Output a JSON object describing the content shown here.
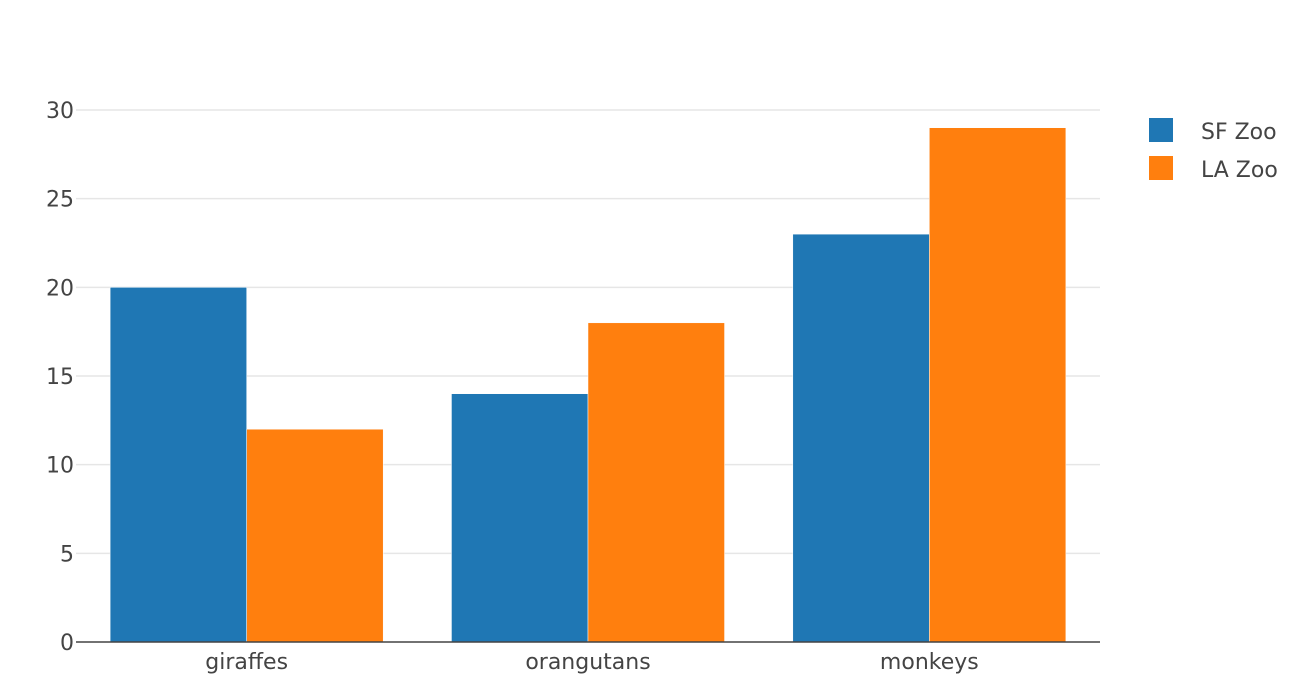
{
  "chart_data": {
    "type": "bar",
    "categories": [
      "giraffes",
      "orangutans",
      "monkeys"
    ],
    "series": [
      {
        "name": "SF Zoo",
        "values": [
          20,
          14,
          23
        ],
        "color": "#1f77b4"
      },
      {
        "name": "LA Zoo",
        "values": [
          12,
          18,
          29
        ],
        "color": "#ff7f0e"
      }
    ],
    "ylim": [
      0,
      30
    ],
    "yticks": [
      0,
      5,
      10,
      15,
      20,
      25,
      30
    ],
    "grid": true,
    "legend_position": "top-right",
    "title": "",
    "xlabel": "",
    "ylabel": ""
  },
  "colors": {
    "grid": "#e6e6e6",
    "axis": "#444444",
    "text": "#444444"
  }
}
